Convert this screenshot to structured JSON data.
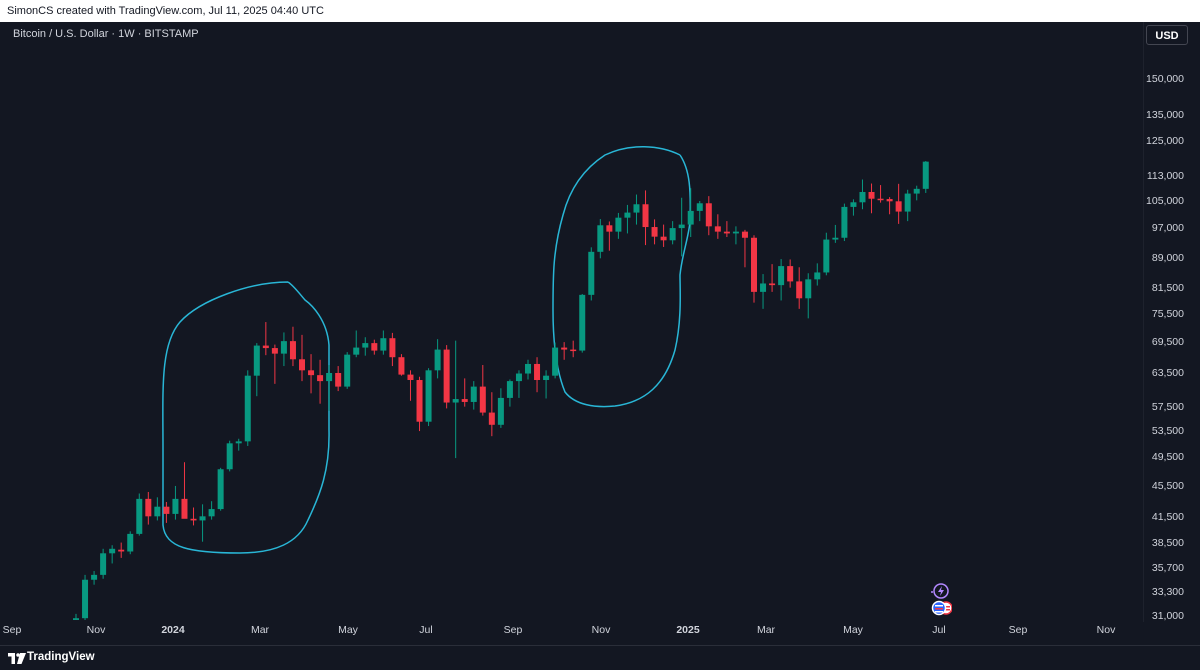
{
  "header": {
    "caption": "SimonCS created with TradingView.com, Jul 11, 2025 04:40 UTC"
  },
  "chart": {
    "symbol_title": "Bitcoin / U.S. Dollar · 1W · BITSTAMP",
    "currency_button": "USD",
    "price_ticks": [
      "150,000",
      "135,000",
      "125,000",
      "113,000",
      "105,000",
      "97,000",
      "89,000",
      "81,500",
      "75,500",
      "69,500",
      "63,500",
      "57,500",
      "53,500",
      "49,500",
      "45,500",
      "41,500",
      "38,500",
      "35,700",
      "33,300",
      "31,000"
    ],
    "time_ticks": [
      {
        "label": "Sep",
        "bold": false
      },
      {
        "label": "Nov",
        "bold": false
      },
      {
        "label": "2024",
        "bold": true
      },
      {
        "label": "Mar",
        "bold": false
      },
      {
        "label": "May",
        "bold": false
      },
      {
        "label": "Jul",
        "bold": false
      },
      {
        "label": "Sep",
        "bold": false
      },
      {
        "label": "Nov",
        "bold": false
      },
      {
        "label": "2025",
        "bold": true
      },
      {
        "label": "Mar",
        "bold": false
      },
      {
        "label": "May",
        "bold": false
      },
      {
        "label": "Jul",
        "bold": false
      },
      {
        "label": "Sep",
        "bold": false
      },
      {
        "label": "Nov",
        "bold": false
      }
    ],
    "colors": {
      "up": "#089981",
      "down": "#f23645",
      "annotation": "#29b6d6",
      "background": "#131722"
    },
    "icons": [
      "lightning-event-icon",
      "us-flag-event-icon"
    ]
  },
  "chart_data": {
    "type": "candlestick",
    "title": "Bitcoin / U.S. Dollar · 1W · BITSTAMP",
    "y_scale": "log",
    "ylim": [
      31000,
      160000
    ],
    "candles": [
      {
        "o": 29800,
        "h": 31200,
        "l": 29500,
        "c": 30800
      },
      {
        "o": 30800,
        "h": 35000,
        "l": 30500,
        "c": 34500
      },
      {
        "o": 34500,
        "h": 35400,
        "l": 34000,
        "c": 35000
      },
      {
        "o": 35000,
        "h": 37800,
        "l": 34600,
        "c": 37300
      },
      {
        "o": 37300,
        "h": 38200,
        "l": 36200,
        "c": 37800
      },
      {
        "o": 37700,
        "h": 38500,
        "l": 36800,
        "c": 37500
      },
      {
        "o": 37500,
        "h": 39800,
        "l": 37200,
        "c": 39500
      },
      {
        "o": 39500,
        "h": 44500,
        "l": 39300,
        "c": 43800
      },
      {
        "o": 43800,
        "h": 44700,
        "l": 40600,
        "c": 41600
      },
      {
        "o": 41600,
        "h": 44000,
        "l": 41100,
        "c": 42800
      },
      {
        "o": 42800,
        "h": 43400,
        "l": 40800,
        "c": 41900
      },
      {
        "o": 41900,
        "h": 45500,
        "l": 41200,
        "c": 43800
      },
      {
        "o": 43800,
        "h": 48800,
        "l": 41400,
        "c": 41300
      },
      {
        "o": 41300,
        "h": 42700,
        "l": 40500,
        "c": 41100
      },
      {
        "o": 41100,
        "h": 43100,
        "l": 38600,
        "c": 41600
      },
      {
        "o": 41600,
        "h": 43500,
        "l": 41200,
        "c": 42500
      },
      {
        "o": 42500,
        "h": 48000,
        "l": 42300,
        "c": 47800
      },
      {
        "o": 47800,
        "h": 52000,
        "l": 47500,
        "c": 51600
      },
      {
        "o": 51600,
        "h": 52300,
        "l": 50500,
        "c": 51900
      },
      {
        "o": 51900,
        "h": 64000,
        "l": 51200,
        "c": 63000
      },
      {
        "o": 63000,
        "h": 69300,
        "l": 59300,
        "c": 68800
      },
      {
        "o": 68800,
        "h": 73700,
        "l": 66900,
        "c": 68300
      },
      {
        "o": 68300,
        "h": 69000,
        "l": 61500,
        "c": 67200
      },
      {
        "o": 67200,
        "h": 71500,
        "l": 64800,
        "c": 69700
      },
      {
        "o": 69700,
        "h": 72700,
        "l": 64800,
        "c": 66100
      },
      {
        "o": 66100,
        "h": 71000,
        "l": 62000,
        "c": 64000
      },
      {
        "o": 64000,
        "h": 67100,
        "l": 59800,
        "c": 63100
      },
      {
        "o": 63100,
        "h": 66000,
        "l": 58000,
        "c": 62000
      },
      {
        "o": 62000,
        "h": 65000,
        "l": 56800,
        "c": 63500
      },
      {
        "o": 63500,
        "h": 64800,
        "l": 60200,
        "c": 61000
      },
      {
        "o": 61000,
        "h": 67500,
        "l": 60600,
        "c": 67000
      },
      {
        "o": 67000,
        "h": 71900,
        "l": 66500,
        "c": 68400
      },
      {
        "o": 68400,
        "h": 70500,
        "l": 66800,
        "c": 69300
      },
      {
        "o": 69300,
        "h": 70000,
        "l": 67000,
        "c": 67800
      },
      {
        "o": 67800,
        "h": 71900,
        "l": 67000,
        "c": 70300
      },
      {
        "o": 70300,
        "h": 71400,
        "l": 64800,
        "c": 66500
      },
      {
        "o": 66500,
        "h": 67100,
        "l": 63000,
        "c": 63200
      },
      {
        "o": 63200,
        "h": 64000,
        "l": 58500,
        "c": 62200
      },
      {
        "o": 62200,
        "h": 62800,
        "l": 53500,
        "c": 55000
      },
      {
        "o": 55000,
        "h": 64400,
        "l": 54300,
        "c": 64000
      },
      {
        "o": 64000,
        "h": 70100,
        "l": 62500,
        "c": 68000
      },
      {
        "o": 68000,
        "h": 68900,
        "l": 57200,
        "c": 58200
      },
      {
        "o": 58200,
        "h": 69800,
        "l": 49400,
        "c": 58800
      },
      {
        "o": 58800,
        "h": 62500,
        "l": 57500,
        "c": 58300
      },
      {
        "o": 58300,
        "h": 62000,
        "l": 57000,
        "c": 61000
      },
      {
        "o": 61000,
        "h": 65000,
        "l": 56000,
        "c": 56500
      },
      {
        "o": 56500,
        "h": 60000,
        "l": 52700,
        "c": 54500
      },
      {
        "o": 54500,
        "h": 60700,
        "l": 54000,
        "c": 59000
      },
      {
        "o": 59000,
        "h": 62300,
        "l": 57500,
        "c": 62000
      },
      {
        "o": 62000,
        "h": 64000,
        "l": 59000,
        "c": 63400
      },
      {
        "o": 63400,
        "h": 66000,
        "l": 62300,
        "c": 65200
      },
      {
        "o": 65200,
        "h": 66500,
        "l": 60000,
        "c": 62200
      },
      {
        "o": 62200,
        "h": 64000,
        "l": 58900,
        "c": 63000
      },
      {
        "o": 63000,
        "h": 69400,
        "l": 62500,
        "c": 68400
      },
      {
        "o": 68400,
        "h": 69500,
        "l": 66000,
        "c": 68000
      },
      {
        "o": 68000,
        "h": 69800,
        "l": 66500,
        "c": 67800
      },
      {
        "o": 67800,
        "h": 80000,
        "l": 67400,
        "c": 79800
      },
      {
        "o": 79800,
        "h": 91700,
        "l": 78500,
        "c": 90500
      },
      {
        "o": 90500,
        "h": 99600,
        "l": 88800,
        "c": 97800
      },
      {
        "o": 97800,
        "h": 98900,
        "l": 90800,
        "c": 96000
      },
      {
        "o": 96000,
        "h": 101400,
        "l": 94000,
        "c": 100000
      },
      {
        "o": 100000,
        "h": 103800,
        "l": 95500,
        "c": 101500
      },
      {
        "o": 101500,
        "h": 107000,
        "l": 98000,
        "c": 104000
      },
      {
        "o": 104000,
        "h": 108300,
        "l": 92300,
        "c": 97300
      },
      {
        "o": 97300,
        "h": 99500,
        "l": 92500,
        "c": 94600
      },
      {
        "o": 94600,
        "h": 98000,
        "l": 91800,
        "c": 93600
      },
      {
        "o": 93600,
        "h": 99000,
        "l": 92500,
        "c": 97000
      },
      {
        "o": 97000,
        "h": 106000,
        "l": 89300,
        "c": 98000
      },
      {
        "o": 98000,
        "h": 109000,
        "l": 94500,
        "c": 102000
      },
      {
        "o": 102000,
        "h": 105000,
        "l": 99000,
        "c": 104300
      },
      {
        "o": 104300,
        "h": 106500,
        "l": 95000,
        "c": 97500
      },
      {
        "o": 97500,
        "h": 101000,
        "l": 94000,
        "c": 96000
      },
      {
        "o": 96000,
        "h": 99000,
        "l": 94500,
        "c": 95500
      },
      {
        "o": 95500,
        "h": 97500,
        "l": 92500,
        "c": 96000
      },
      {
        "o": 96000,
        "h": 96500,
        "l": 86500,
        "c": 94300
      },
      {
        "o": 94300,
        "h": 95000,
        "l": 78000,
        "c": 80500
      },
      {
        "o": 80500,
        "h": 84800,
        "l": 76600,
        "c": 82500
      },
      {
        "o": 82500,
        "h": 87300,
        "l": 80500,
        "c": 82100
      },
      {
        "o": 82100,
        "h": 88600,
        "l": 78500,
        "c": 86800
      },
      {
        "o": 86800,
        "h": 88500,
        "l": 81500,
        "c": 83000
      },
      {
        "o": 83000,
        "h": 86500,
        "l": 76600,
        "c": 79000
      },
      {
        "o": 79000,
        "h": 85000,
        "l": 74500,
        "c": 83500
      },
      {
        "o": 83500,
        "h": 87500,
        "l": 82000,
        "c": 85200
      },
      {
        "o": 85200,
        "h": 95700,
        "l": 84500,
        "c": 93800
      },
      {
        "o": 93800,
        "h": 97900,
        "l": 92900,
        "c": 94300
      },
      {
        "o": 94300,
        "h": 104200,
        "l": 93400,
        "c": 103200
      },
      {
        "o": 103200,
        "h": 105500,
        "l": 100600,
        "c": 104600
      },
      {
        "o": 104600,
        "h": 111800,
        "l": 102500,
        "c": 107800
      },
      {
        "o": 107800,
        "h": 110500,
        "l": 101300,
        "c": 105700
      },
      {
        "o": 105700,
        "h": 110000,
        "l": 104500,
        "c": 105600
      },
      {
        "o": 105600,
        "h": 106200,
        "l": 101000,
        "c": 104900
      },
      {
        "o": 104900,
        "h": 110400,
        "l": 98200,
        "c": 101800
      },
      {
        "o": 101800,
        "h": 108500,
        "l": 99000,
        "c": 107300
      },
      {
        "o": 107300,
        "h": 109800,
        "l": 105200,
        "c": 108800
      },
      {
        "o": 108800,
        "h": 118000,
        "l": 107500,
        "c": 117800
      }
    ]
  },
  "footer": {
    "brand": "TradingView"
  }
}
